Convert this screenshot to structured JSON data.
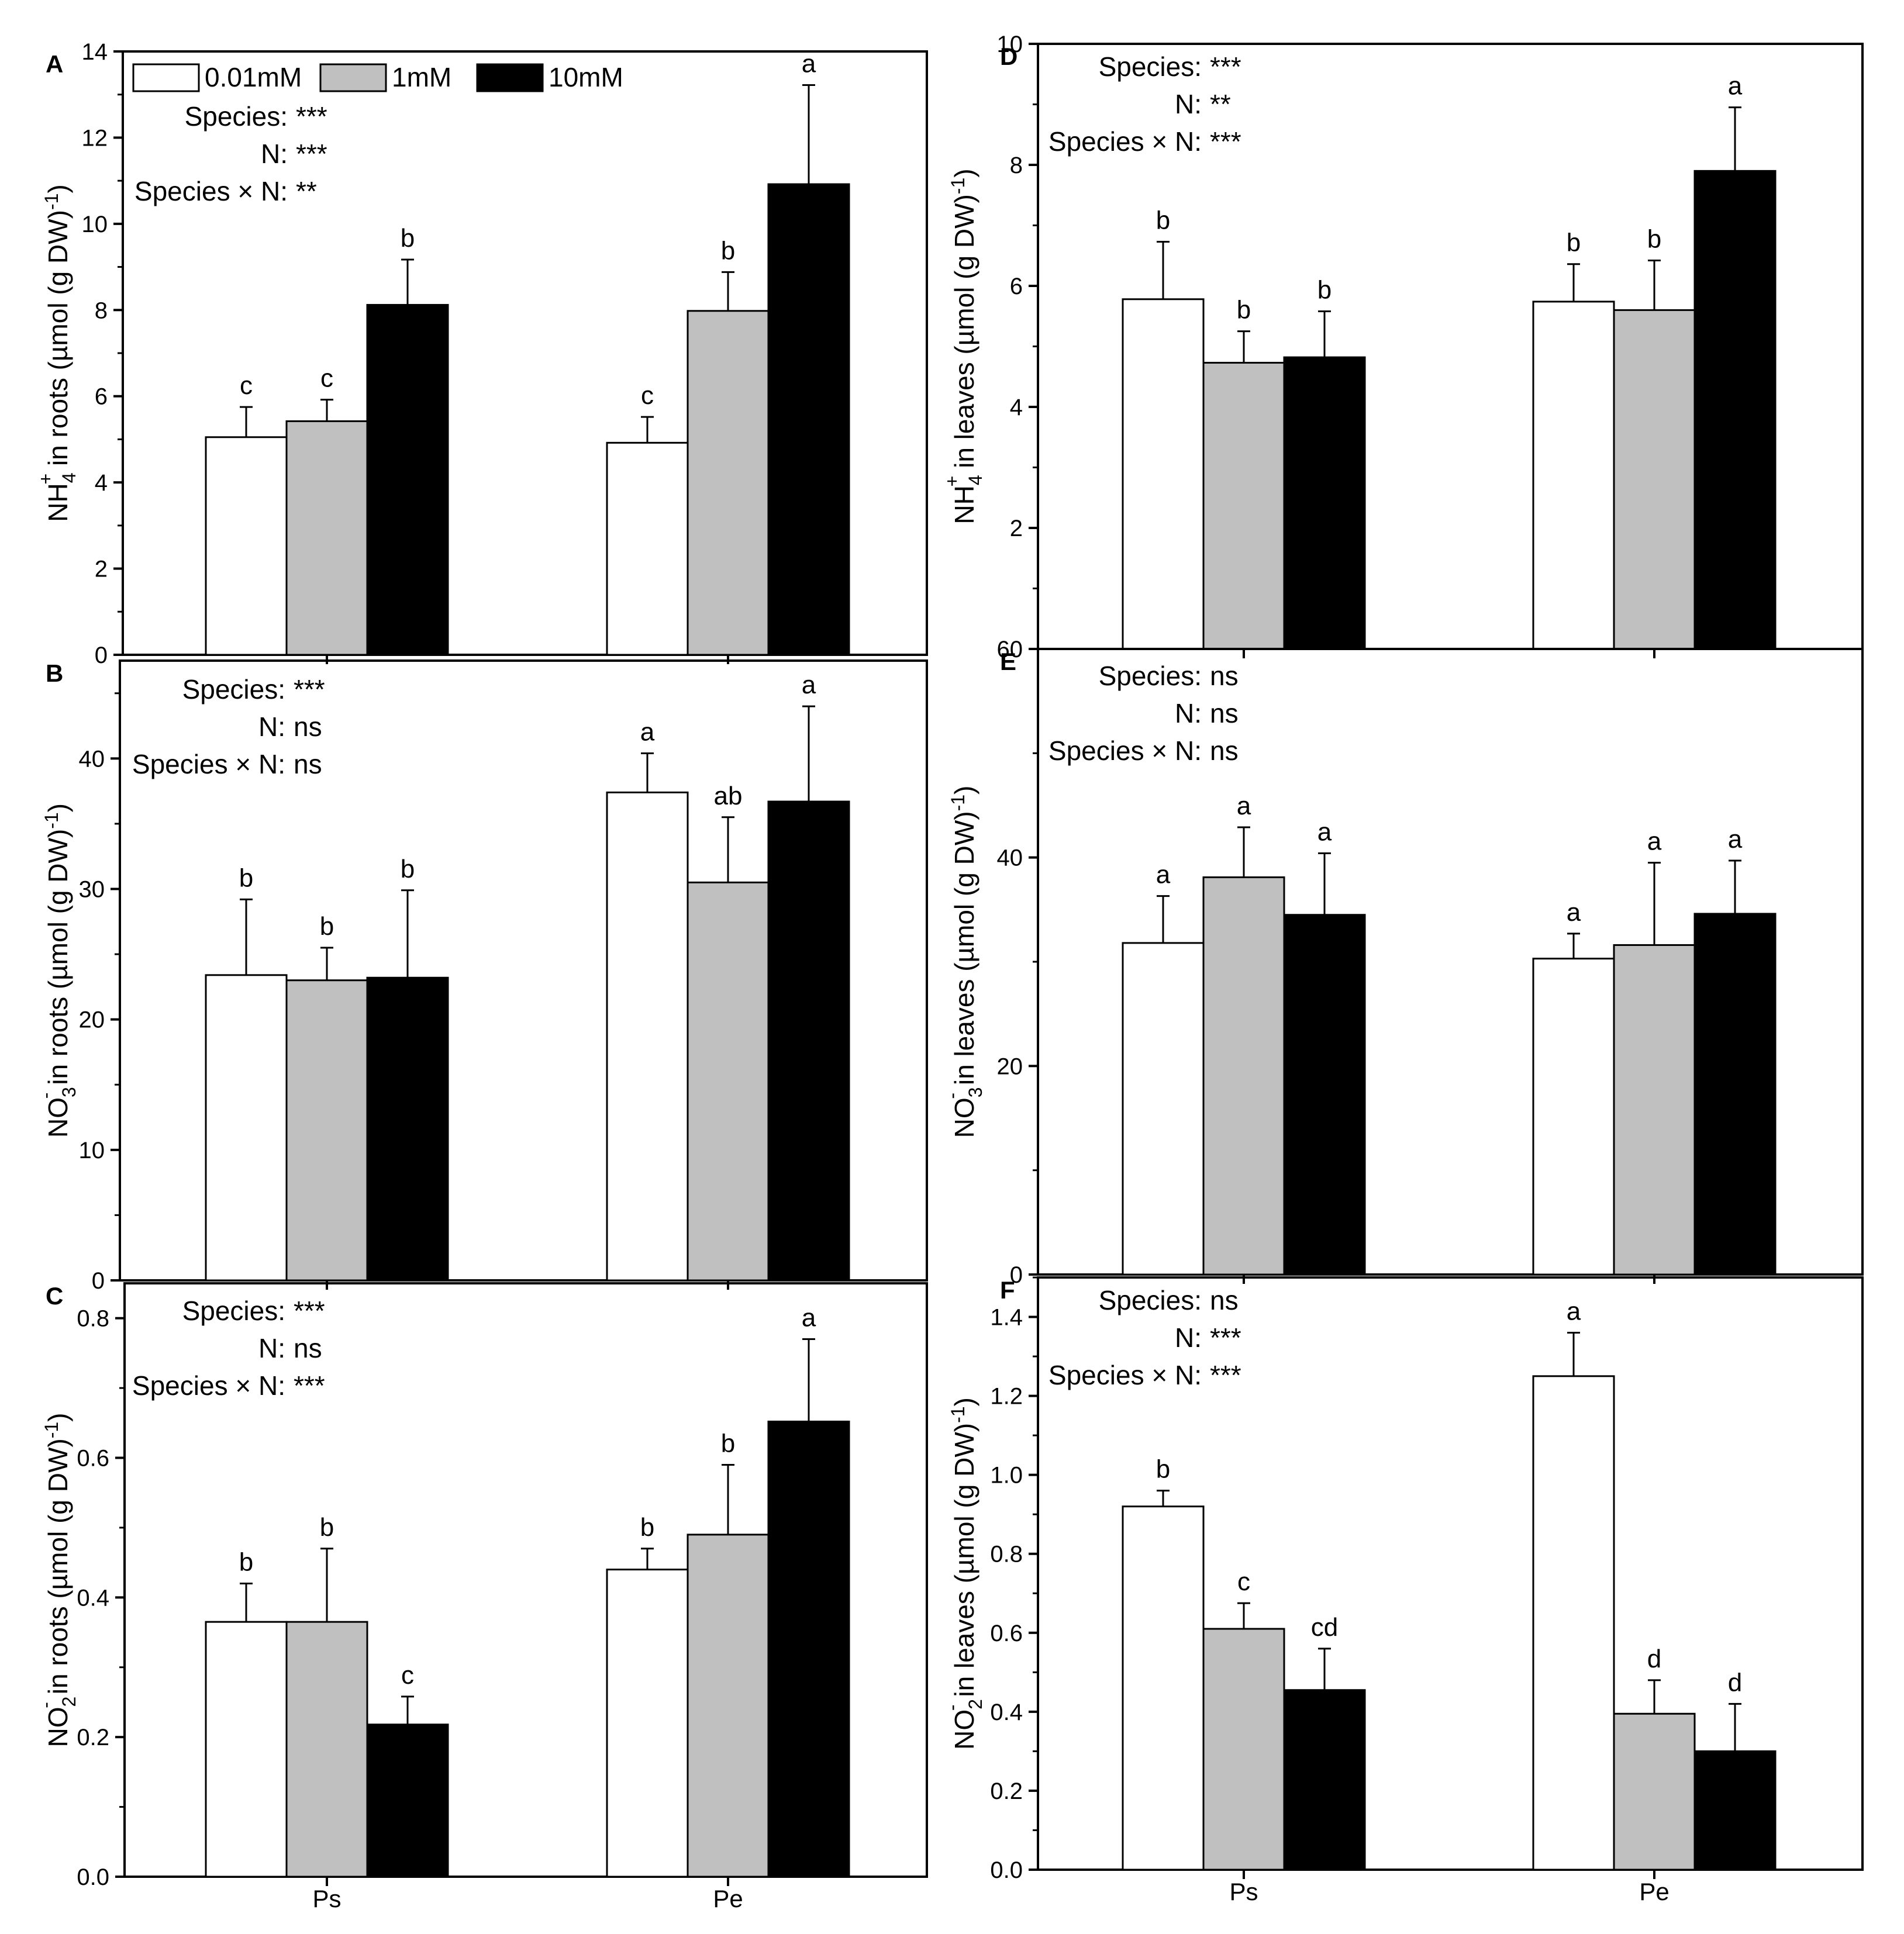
{
  "figure": {
    "legend": [
      "0.01mM",
      "1mM",
      "10mM"
    ],
    "group_labels": [
      "Ps",
      "Pe"
    ]
  },
  "colors": {
    "0.01mM": "#ffffff",
    "1mM": "#c0c0c0",
    "10mM": "#000000"
  },
  "chart_data": [
    {
      "panel": "A",
      "type": "bar",
      "ylabel_main": "NH",
      "ylabel_sub": "4",
      "ylabel_sup": "+",
      "ylabel_rest": " in roots (µmol (g DW)",
      "ylabel_exp": "-1",
      "ylabel_end": ")",
      "categories": [
        "Ps",
        "Pe"
      ],
      "series": [
        {
          "name": "0.01mM",
          "values": [
            5.05,
            4.92
          ],
          "errors": [
            0.7,
            0.6
          ],
          "letters": [
            "c",
            "c"
          ]
        },
        {
          "name": "1mM",
          "values": [
            5.42,
            7.98
          ],
          "errors": [
            0.5,
            0.9
          ],
          "letters": [
            "c",
            "b"
          ]
        },
        {
          "name": "10mM",
          "values": [
            8.12,
            10.92
          ],
          "errors": [
            1.05,
            2.3
          ],
          "letters": [
            "b",
            "a"
          ]
        }
      ],
      "ylim": [
        0,
        14
      ],
      "major": 2,
      "ticks": [
        "0",
        "2",
        "4",
        "6",
        "8",
        "10",
        "12",
        "14"
      ],
      "stats": [
        "Species: ***",
        "N: ***",
        "Species × N: **"
      ]
    },
    {
      "panel": "B",
      "type": "bar",
      "ylabel_main": "NO",
      "ylabel_sub": "3",
      "ylabel_sup": "-",
      "ylabel_rest": " in roots (µmol (g DW)",
      "ylabel_exp": "-1",
      "ylabel_end": ")",
      "categories": [
        "Ps",
        "Pe"
      ],
      "series": [
        {
          "name": "0.01mM",
          "values": [
            23.4,
            37.4
          ],
          "errors": [
            5.8,
            3.0
          ],
          "letters": [
            "b",
            "a"
          ]
        },
        {
          "name": "1mM",
          "values": [
            23.0,
            30.5
          ],
          "errors": [
            2.5,
            5.0
          ],
          "letters": [
            "b",
            "ab"
          ]
        },
        {
          "name": "10mM",
          "values": [
            23.2,
            36.7
          ],
          "errors": [
            6.7,
            7.3
          ],
          "letters": [
            "b",
            "a"
          ]
        }
      ],
      "ylim": [
        0,
        47.5
      ],
      "major": 10,
      "ticks": [
        "0",
        "10",
        "20",
        "30",
        "40"
      ],
      "stats": [
        "Species: ***",
        "N: ns",
        "Species × N: ns"
      ]
    },
    {
      "panel": "C",
      "type": "bar",
      "ylabel_main": "NO",
      "ylabel_sub": "2",
      "ylabel_sup": "-",
      "ylabel_rest": " in roots (µmol (g DW)",
      "ylabel_exp": "-1",
      "ylabel_end": ")",
      "categories": [
        "Ps",
        "Pe"
      ],
      "series": [
        {
          "name": "0.01mM",
          "values": [
            0.365,
            0.44
          ],
          "errors": [
            0.055,
            0.03
          ],
          "letters": [
            "b",
            "b"
          ]
        },
        {
          "name": "1mM",
          "values": [
            0.365,
            0.49
          ],
          "errors": [
            0.105,
            0.1
          ],
          "letters": [
            "b",
            "b"
          ]
        },
        {
          "name": "10mM",
          "values": [
            0.218,
            0.652
          ],
          "errors": [
            0.04,
            0.118
          ],
          "letters": [
            "c",
            "a"
          ]
        }
      ],
      "ylim": [
        0,
        0.85
      ],
      "major": 0.2,
      "ticks": [
        "0.0",
        "0.2",
        "0.4",
        "0.6",
        "0.8"
      ],
      "stats": [
        "Species: ***",
        "N: ns",
        "Species × N: ***"
      ]
    },
    {
      "panel": "D",
      "type": "bar",
      "ylabel_main": "NH",
      "ylabel_sub": "4",
      "ylabel_sup": "+",
      "ylabel_rest": " in leaves (µmol (g DW)",
      "ylabel_exp": "-1",
      "ylabel_end": ")",
      "categories": [
        "Ps",
        "Pe"
      ],
      "series": [
        {
          "name": "0.01mM",
          "values": [
            5.78,
            5.74
          ],
          "errors": [
            0.95,
            0.62
          ],
          "letters": [
            "b",
            "b"
          ]
        },
        {
          "name": "1mM",
          "values": [
            4.73,
            5.6
          ],
          "errors": [
            0.52,
            0.82
          ],
          "letters": [
            "b",
            "b"
          ]
        },
        {
          "name": "10mM",
          "values": [
            4.82,
            7.9
          ],
          "errors": [
            0.76,
            1.05
          ],
          "letters": [
            "b",
            "a"
          ]
        }
      ],
      "ylim": [
        0,
        10
      ],
      "major": 2,
      "ticks": [
        "",
        "2",
        "4",
        "6",
        "8",
        "10"
      ],
      "stats": [
        "Species: ***",
        "N: **",
        "Species × N: ***"
      ]
    },
    {
      "panel": "E",
      "type": "bar",
      "ylabel_main": "NO",
      "ylabel_sub": "3",
      "ylabel_sup": "-",
      "ylabel_rest": " in leaves (µmol (g DW)",
      "ylabel_exp": "-1",
      "ylabel_end": ")",
      "categories": [
        "Ps",
        "Pe"
      ],
      "series": [
        {
          "name": "0.01mM",
          "values": [
            31.8,
            30.3
          ],
          "errors": [
            4.5,
            2.4
          ],
          "letters": [
            "a",
            "a"
          ]
        },
        {
          "name": "1mM",
          "values": [
            38.1,
            31.6
          ],
          "errors": [
            4.8,
            7.9
          ],
          "letters": [
            "a",
            "a"
          ]
        },
        {
          "name": "10mM",
          "values": [
            34.5,
            34.6
          ],
          "errors": [
            5.9,
            5.1
          ],
          "letters": [
            "a",
            "a"
          ]
        }
      ],
      "ylim": [
        0,
        60
      ],
      "major": 20,
      "ticks": [
        "0",
        "20",
        "40",
        "60"
      ],
      "stats": [
        "Species: ns",
        "N: ns",
        "Species × N: ns"
      ]
    },
    {
      "panel": "F",
      "type": "bar",
      "ylabel_main": "NO",
      "ylabel_sub": "2",
      "ylabel_sup": "-",
      "ylabel_rest": " in leaves (µmol (g DW)",
      "ylabel_exp": "-1",
      "ylabel_end": ")",
      "categories": [
        "Ps",
        "Pe"
      ],
      "series": [
        {
          "name": "0.01mM",
          "values": [
            0.92,
            1.25
          ],
          "errors": [
            0.04,
            0.11
          ],
          "letters": [
            "b",
            "a"
          ]
        },
        {
          "name": "1mM",
          "values": [
            0.61,
            0.395
          ],
          "errors": [
            0.065,
            0.085
          ],
          "letters": [
            "c",
            "d"
          ]
        },
        {
          "name": "10mM",
          "values": [
            0.455,
            0.3
          ],
          "errors": [
            0.105,
            0.12
          ],
          "letters": [
            "cd",
            "d"
          ]
        }
      ],
      "ylim": [
        0,
        1.5
      ],
      "major": 0.2,
      "ticks": [
        "0.0",
        "0.2",
        "0.4",
        "0.6",
        "0.8",
        "1.0",
        "1.2",
        "1.4"
      ],
      "stats": [
        "Species: ns",
        "N: ***",
        "Species × N: ***"
      ]
    }
  ]
}
